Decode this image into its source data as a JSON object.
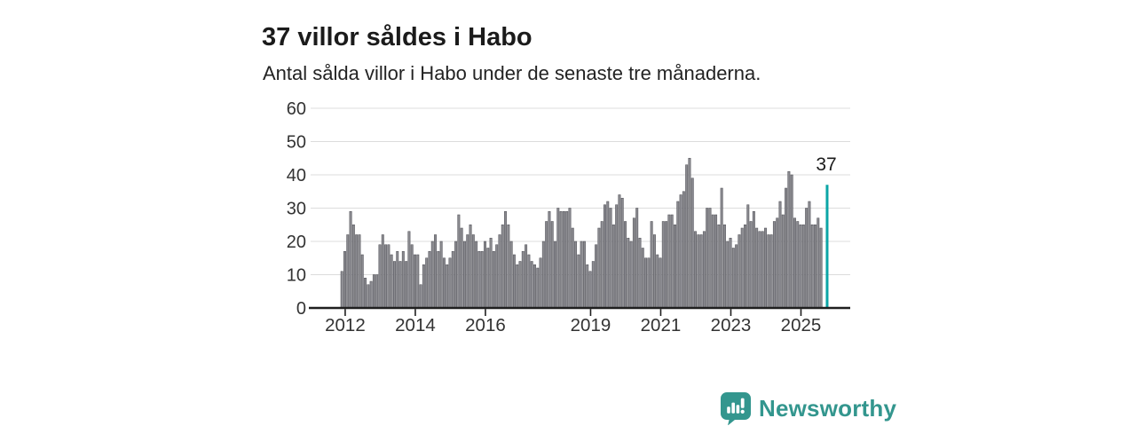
{
  "header": {
    "title": "37 villor såldes i Habo",
    "subtitle": "Antal sålda villor i Habo under de senaste tre månaderna."
  },
  "annotation": {
    "label": "37"
  },
  "footer": {
    "brand": "Newsworthy"
  },
  "colors": {
    "bar": "#8b8b90",
    "bar_stroke": "#53535a",
    "highlight": "#0ba5a6",
    "brand": "#33968e",
    "grid": "#dcdcdc",
    "axis": "#1f1f1f",
    "tick_text": "#333333",
    "title_text": "#1b1b1b"
  },
  "chart_data": {
    "type": "bar",
    "title": "37 villor såldes i Habo",
    "subtitle": "Antal sålda villor i Habo under de senaste tre månaderna.",
    "xlabel": "",
    "ylabel": "",
    "ylim": [
      0,
      60
    ],
    "y_ticks": [
      0,
      10,
      20,
      30,
      40,
      50,
      60
    ],
    "grid": "horizontal",
    "legend": "none",
    "x_ticks": [
      {
        "label": "2012",
        "month": 0
      },
      {
        "label": "2014",
        "month": 24
      },
      {
        "label": "2016",
        "month": 48
      },
      {
        "label": "2019",
        "month": 84
      },
      {
        "label": "2021",
        "month": 108
      },
      {
        "label": "2023",
        "month": 132
      },
      {
        "label": "2025",
        "month": 156
      }
    ],
    "values": [
      11,
      17,
      22,
      29,
      25,
      22,
      22,
      16,
      9,
      7,
      8,
      10,
      10,
      19,
      22,
      19,
      19,
      16,
      14,
      17,
      14,
      17,
      14,
      23,
      19,
      16,
      16,
      7,
      13,
      15,
      17,
      20,
      22,
      17,
      20,
      15,
      13,
      15,
      17,
      20,
      28,
      24,
      20,
      22,
      25,
      22,
      20,
      17,
      17,
      20,
      18,
      21,
      17,
      19,
      22,
      25,
      29,
      25,
      20,
      16,
      13,
      14,
      17,
      19,
      16,
      14,
      13,
      12,
      15,
      20,
      26,
      29,
      26,
      20,
      30,
      29,
      29,
      29,
      30,
      24,
      20,
      16,
      20,
      20,
      13,
      11,
      14,
      19,
      24,
      26,
      31,
      32,
      30,
      25,
      31,
      34,
      33,
      26,
      21,
      20,
      27,
      30,
      21,
      18,
      15,
      15,
      26,
      22,
      16,
      15,
      26,
      26,
      28,
      28,
      25,
      32,
      34,
      35,
      43,
      45,
      39,
      23,
      22,
      22,
      23,
      30,
      30,
      28,
      28,
      25,
      36,
      25,
      20,
      21,
      18,
      19,
      22,
      24,
      25,
      31,
      26,
      29,
      24,
      23,
      23,
      24,
      22,
      22,
      26,
      27,
      32,
      28,
      36,
      41,
      40,
      27,
      26,
      25,
      25,
      30,
      32,
      25,
      25,
      27,
      24
    ],
    "highlight": {
      "value": 37,
      "label": "37",
      "gap_before": 1
    }
  }
}
